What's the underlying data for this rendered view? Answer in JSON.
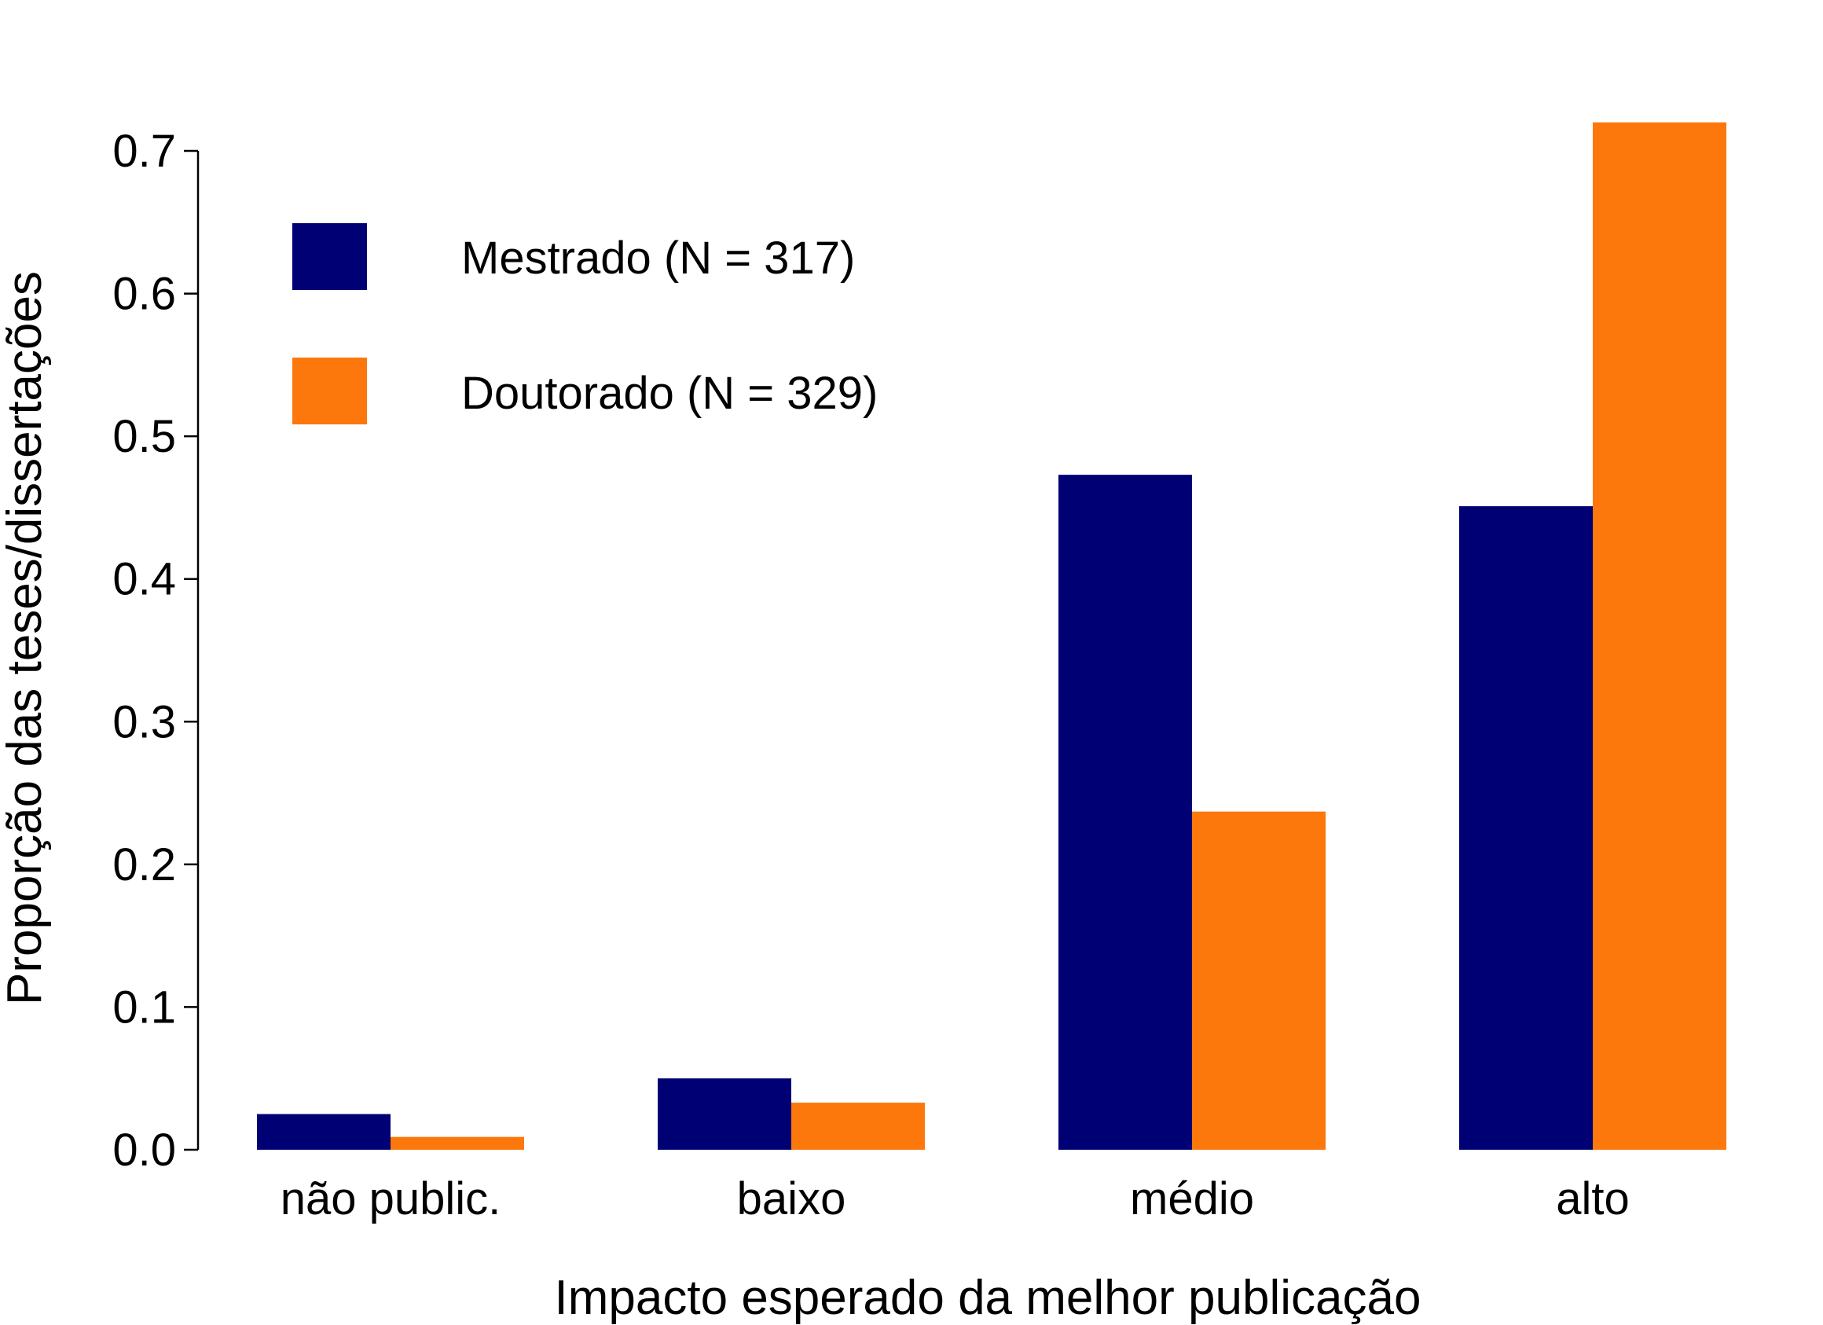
{
  "chart_data": {
    "type": "bar",
    "title": "",
    "xlabel": "Impacto esperado da melhor publicação",
    "ylabel": "Proporção das teses/dissertações",
    "categories": [
      "não public.",
      "baixo",
      "médio",
      "alto"
    ],
    "series": [
      {
        "name": "Mestrado (N = 317)",
        "color": "#000075",
        "values": [
          0.025,
          0.05,
          0.473,
          0.451
        ]
      },
      {
        "name": "Doutorado (N = 329)",
        "color": "#FC780C",
        "values": [
          0.009,
          0.033,
          0.237,
          0.72
        ]
      }
    ],
    "ylim": [
      0,
      0.7
    ],
    "yticks": [
      0.0,
      0.1,
      0.2,
      0.3,
      0.4,
      0.5,
      0.6,
      0.7
    ],
    "ytick_labels": [
      "0.0",
      "0.1",
      "0.2",
      "0.3",
      "0.4",
      "0.5",
      "0.6",
      "0.7"
    ],
    "grid": false,
    "legend_position": "top-left"
  }
}
